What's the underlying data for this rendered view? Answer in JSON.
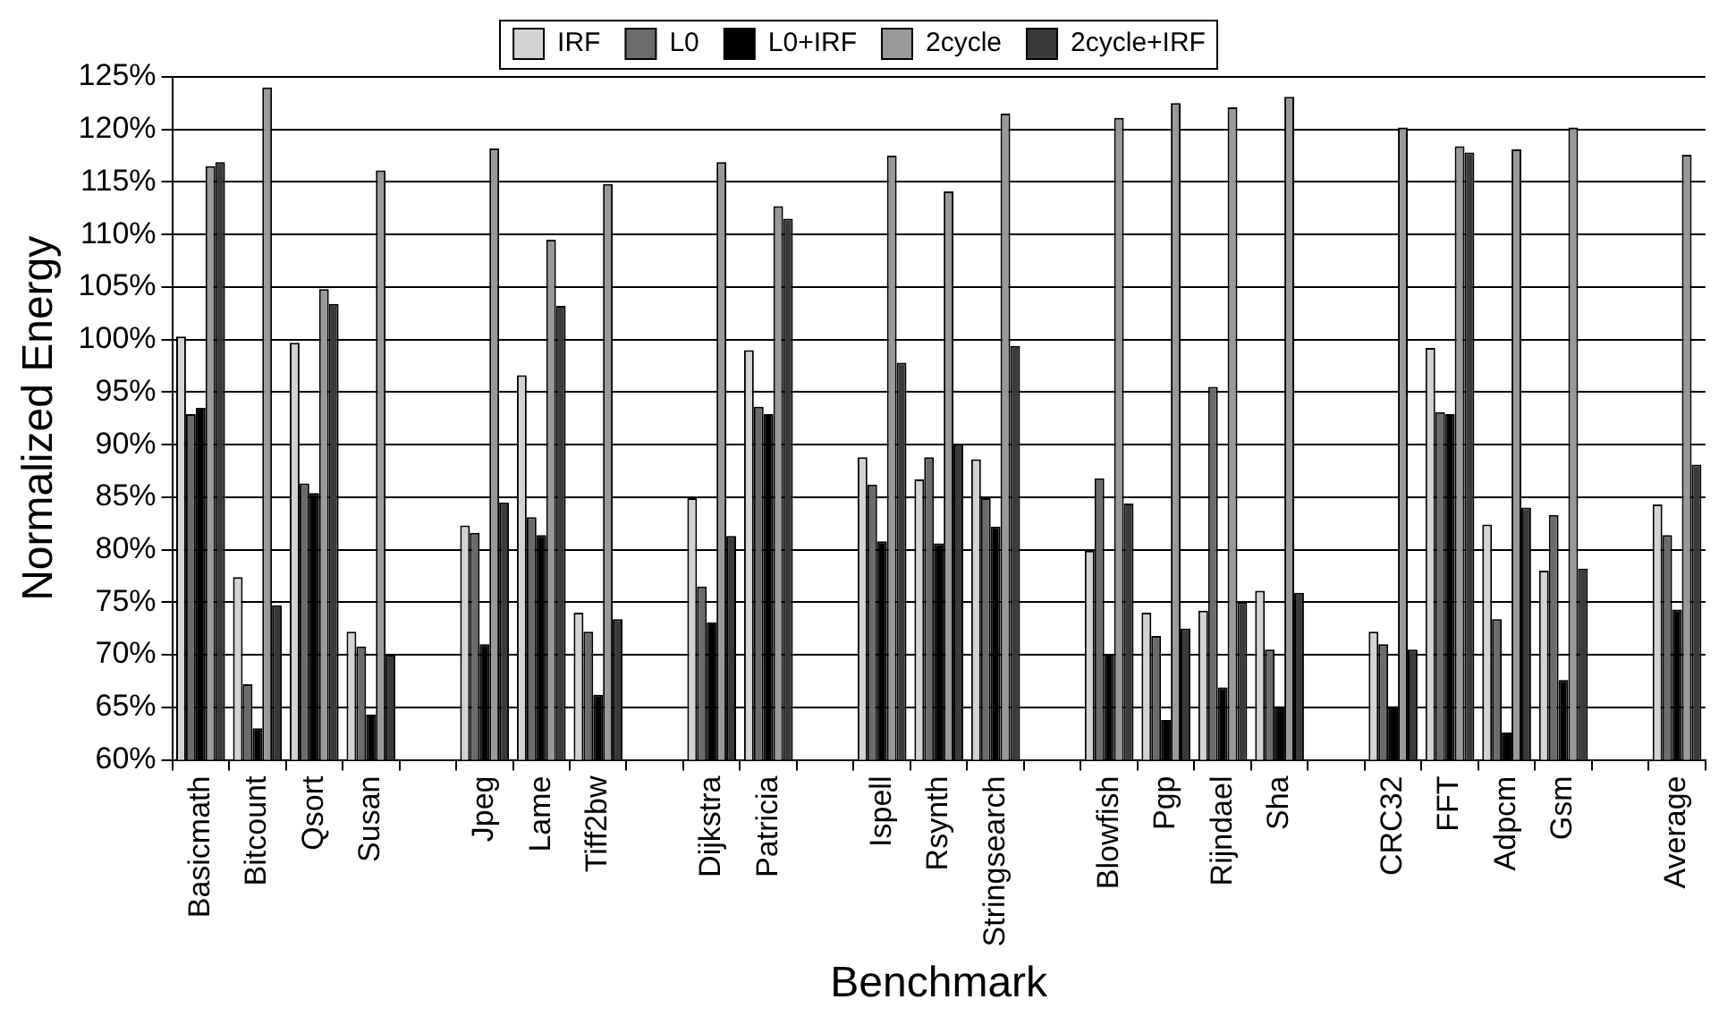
{
  "chart_data": {
    "type": "bar",
    "xlabel": "Benchmark",
    "ylabel": "Normalized Energy",
    "categories": [
      "Basicmath",
      "Bitcount",
      "Qsort",
      "Susan",
      null,
      "Jpeg",
      "Lame",
      "Tiff2bw",
      null,
      "Dijkstra",
      "Patricia",
      null,
      "Ispell",
      "Rsynth",
      "Stringsearch",
      null,
      "Blowfish",
      "Pgp",
      "Rijndael",
      "Sha",
      null,
      "CRC32",
      "FFT",
      "Adpcm",
      "Gsm",
      null,
      "Average"
    ],
    "series": [
      {
        "name": "IRF",
        "color": "#d3d3d3",
        "values": [
          100.3,
          77.4,
          99.7,
          72.2,
          null,
          82.3,
          96.6,
          74,
          null,
          84.9,
          99,
          null,
          88.8,
          86.7,
          88.6,
          null,
          79.9,
          74,
          74.2,
          76.1,
          null,
          72.2,
          99.2,
          82.4,
          78,
          null,
          84.3
        ]
      },
      {
        "name": "L0",
        "color": "#6b6b6b",
        "values": [
          92.9,
          67.2,
          86.3,
          70.8,
          null,
          81.6,
          83.1,
          72.2,
          null,
          76.5,
          93.6,
          null,
          86.2,
          88.8,
          84.9,
          null,
          86.8,
          71.8,
          95.5,
          70.5,
          null,
          71,
          93.1,
          73.4,
          83.3,
          null,
          81.4
        ]
      },
      {
        "name": "L0+IRF",
        "color": "#000000",
        "values": [
          93.5,
          63,
          85.4,
          64.3,
          null,
          71,
          81.4,
          66.2,
          null,
          73.1,
          92.9,
          null,
          80.8,
          80.6,
          82.2,
          null,
          70.1,
          63.8,
          66.9,
          65.1,
          null,
          65.1,
          92.9,
          62.6,
          67.6,
          null,
          74.3
        ]
      },
      {
        "name": "2cycle",
        "color": "#999999",
        "values": [
          116.5,
          124,
          104.8,
          116.1,
          null,
          118.2,
          109.5,
          114.8,
          null,
          116.9,
          112.7,
          null,
          117.5,
          114.1,
          121.5,
          null,
          121.1,
          122.5,
          122.1,
          123.1,
          null,
          120.2,
          118.4,
          118.1,
          120.2,
          null,
          117.6
        ]
      },
      {
        "name": "2cycle+IRF",
        "color": "#3a3a3a",
        "values": [
          116.9,
          74.7,
          103.4,
          70,
          null,
          84.5,
          103.2,
          73.4,
          null,
          81.3,
          111.5,
          null,
          97.8,
          90.1,
          99.4,
          null,
          84.4,
          72.5,
          75,
          75.9,
          null,
          70.5,
          117.8,
          84,
          78.2,
          null,
          88.1
        ]
      }
    ],
    "ylim": [
      60,
      125
    ],
    "yticks": [
      {
        "value": 60,
        "label": "60%"
      },
      {
        "value": 65,
        "label": "65%"
      },
      {
        "value": 70,
        "label": "70%"
      },
      {
        "value": 75,
        "label": "75%"
      },
      {
        "value": 80,
        "label": "80%"
      },
      {
        "value": 85,
        "label": "85%"
      },
      {
        "value": 90,
        "label": "90%"
      },
      {
        "value": 95,
        "label": "95%"
      },
      {
        "value": 100,
        "label": "100%"
      },
      {
        "value": 105,
        "label": "105%"
      },
      {
        "value": 110,
        "label": "110%"
      },
      {
        "value": 115,
        "label": "115%"
      },
      {
        "value": 120,
        "label": "120%"
      },
      {
        "value": 125,
        "label": "125%"
      }
    ],
    "grid": "y",
    "legend": "top"
  }
}
